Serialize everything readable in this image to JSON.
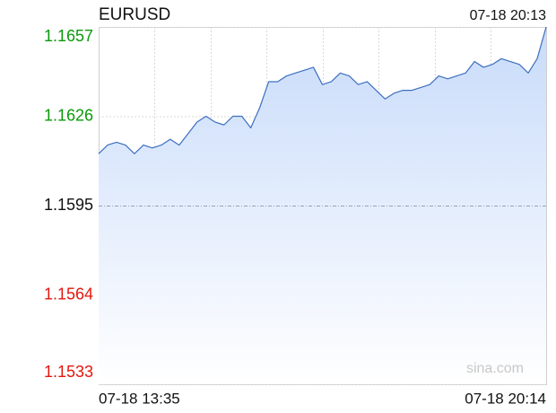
{
  "chart_data": {
    "type": "area",
    "title": "EURUSD",
    "timestamp": "07-18 20:13",
    "watermark": "sina.com",
    "categories": [
      "07-18 13:35",
      null,
      null,
      null,
      null,
      null,
      null,
      null,
      null,
      null,
      null,
      null,
      null,
      null,
      null,
      null,
      null,
      null,
      null,
      null,
      null,
      null,
      null,
      null,
      null,
      null,
      null,
      null,
      null,
      null,
      null,
      null,
      null,
      null,
      null,
      null,
      null,
      null,
      null,
      null,
      null,
      null,
      null,
      null,
      null,
      null,
      null,
      null,
      null,
      null,
      "07-18 20:14"
    ],
    "values": [
      1.1613,
      1.1616,
      1.1617,
      1.1616,
      1.1613,
      1.1616,
      1.1615,
      1.1616,
      1.1618,
      1.1616,
      1.162,
      1.1624,
      1.1626,
      1.1624,
      1.1623,
      1.1626,
      1.1626,
      1.1622,
      1.1629,
      1.1638,
      1.1638,
      1.164,
      1.1641,
      1.1642,
      1.1643,
      1.1637,
      1.1638,
      1.1641,
      1.164,
      1.1637,
      1.1638,
      1.1635,
      1.1632,
      1.1634,
      1.1635,
      1.1635,
      1.1636,
      1.1637,
      1.164,
      1.1639,
      1.164,
      1.1641,
      1.1645,
      1.1643,
      1.1644,
      1.1646,
      1.1645,
      1.1644,
      1.1641,
      1.1646,
      1.1657
    ],
    "color": "#3d6fc0",
    "fill_color": "#c8dbfa",
    "ylim": [
      1.1533,
      1.1657
    ],
    "yticks": [
      1.1657,
      1.1626,
      1.1595,
      1.1564,
      1.1533
    ],
    "baseline": 1.1595,
    "up_color": "#0a9a0a",
    "down_color": "#e3170d",
    "flat_color": "#111111",
    "grid": true
  }
}
